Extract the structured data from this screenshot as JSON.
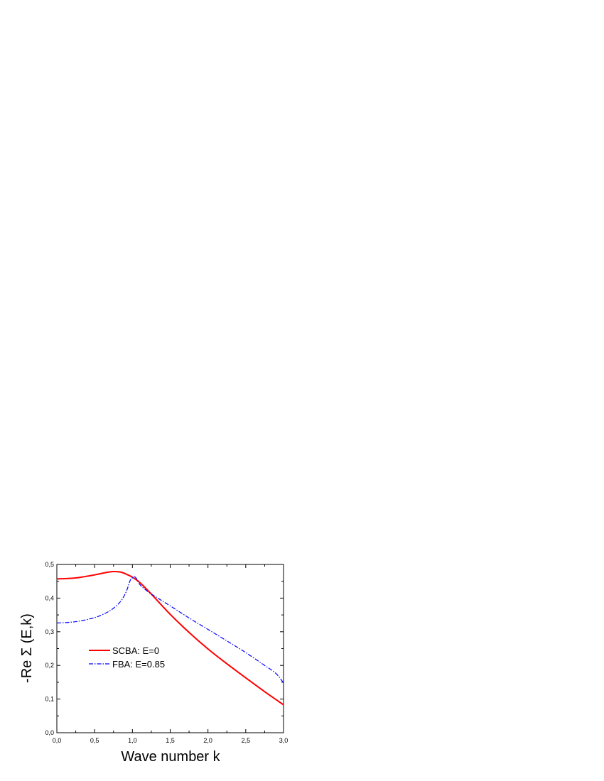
{
  "chart_data": {
    "type": "line",
    "title": "",
    "xlabel": "Wave number k",
    "ylabel": "-Re Σ (E,k)",
    "xlim": [
      0,
      3
    ],
    "ylim": [
      0,
      0.5
    ],
    "xticks": [
      "0,0",
      "0,5",
      "1,0",
      "1,5",
      "2,0",
      "2,5",
      "3,0"
    ],
    "yticks": [
      "0,0",
      "0,1",
      "0,2",
      "0,3",
      "0,4",
      "0,5"
    ],
    "grid": false,
    "legend_position": "center-left",
    "series": [
      {
        "name": "SCBA: E=0",
        "color": "#ff0000",
        "style": "solid",
        "x": [
          0,
          0.25,
          0.5,
          0.65,
          0.75,
          0.85,
          0.95,
          1.0,
          1.1,
          1.25,
          1.5,
          1.75,
          2.0,
          2.25,
          2.5,
          2.75,
          3.0
        ],
        "y": [
          0.457,
          0.46,
          0.469,
          0.476,
          0.479,
          0.477,
          0.468,
          0.462,
          0.446,
          0.412,
          0.352,
          0.298,
          0.249,
          0.205,
          0.163,
          0.122,
          0.083
        ]
      },
      {
        "name": "FBA: E=0.85",
        "color": "#0000ff",
        "style": "dash-dot",
        "x": [
          0,
          0.25,
          0.5,
          0.65,
          0.75,
          0.85,
          0.92,
          0.97,
          1.0,
          1.04,
          1.1,
          1.2,
          1.3,
          1.5,
          1.75,
          2.0,
          2.25,
          2.5,
          2.75,
          2.9,
          3.0
        ],
        "y": [
          0.326,
          0.33,
          0.342,
          0.356,
          0.37,
          0.392,
          0.42,
          0.452,
          0.46,
          0.462,
          0.44,
          0.42,
          0.405,
          0.377,
          0.341,
          0.307,
          0.273,
          0.238,
          0.2,
          0.176,
          0.148
        ]
      }
    ]
  }
}
